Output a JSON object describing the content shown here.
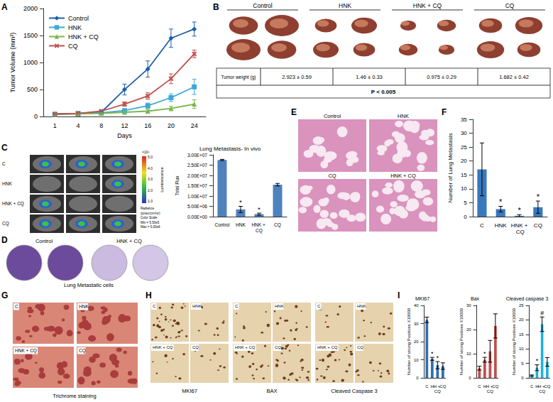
{
  "chart_data": [
    {
      "type": "line",
      "y_label": "Tumor Volume (mm³)",
      "x_label": "Days",
      "categories": [
        1,
        4,
        8,
        12,
        16,
        20,
        24
      ],
      "ylim": [
        0,
        2000
      ],
      "yticks": [
        0,
        500,
        1000,
        1500,
        2000
      ],
      "grid": false,
      "legend": "top-left",
      "series": [
        {
          "name": "Control",
          "color": "#1f5fa8",
          "marker": "diamond",
          "values": [
            50,
            60,
            80,
            500,
            880,
            1450,
            1620
          ],
          "errors": [
            10,
            15,
            20,
            100,
            150,
            170,
            130
          ]
        },
        {
          "name": "HNK",
          "color": "#3fa9d6",
          "marker": "square",
          "values": [
            40,
            55,
            70,
            110,
            200,
            350,
            550
          ],
          "errors": [
            10,
            10,
            15,
            30,
            50,
            70,
            140
          ]
        },
        {
          "name": "HNK + CQ",
          "color": "#7ab648",
          "marker": "triangle",
          "values": [
            40,
            50,
            60,
            80,
            100,
            150,
            230
          ],
          "errors": [
            10,
            10,
            10,
            20,
            30,
            40,
            80
          ]
        },
        {
          "name": "CQ",
          "color": "#c0504d",
          "marker": "x",
          "values": [
            45,
            60,
            100,
            230,
            380,
            700,
            1160
          ],
          "errors": [
            10,
            10,
            20,
            40,
            60,
            90,
            70
          ]
        }
      ]
    },
    {
      "type": "bar",
      "title": "Lung Metastasis- In vivo",
      "y_label": "Total Flux",
      "categories": [
        "Control",
        "HNK",
        "HNK + CQ",
        "CQ"
      ],
      "values": [
        27500000,
        3500000,
        1200000,
        15500000
      ],
      "errors": [
        300000,
        1500000,
        500000,
        600000
      ],
      "significance": [
        null,
        "*",
        "*",
        null
      ],
      "color": "#4f81bd",
      "ylim": [
        0,
        30000000
      ],
      "yticks": [
        {
          "value": 0,
          "label": "0.00E+00"
        },
        {
          "value": 5000000,
          "label": "5.00E+06"
        },
        {
          "value": 10000000,
          "label": "1.00E+07"
        },
        {
          "value": 15000000,
          "label": "1.50E+07"
        },
        {
          "value": 20000000,
          "label": "2.00E+07"
        },
        {
          "value": 25000000,
          "label": "2.50E+07"
        },
        {
          "value": 30000000,
          "label": "3.00E+07"
        }
      ],
      "grid": false
    },
    {
      "type": "bar",
      "y_label": "Number of Lung Metastasis",
      "categories": [
        "C",
        "HNK",
        "HNK + CQ",
        "CQ"
      ],
      "values": [
        17,
        2.7,
        0.3,
        3.4
      ],
      "errors": [
        9.5,
        1,
        0.4,
        2.2
      ],
      "significance": [
        null,
        "*",
        "*",
        "*"
      ],
      "color": "#3a78bd",
      "ylim": [
        0,
        35
      ],
      "yticks": [
        0,
        5,
        10,
        15,
        20,
        25,
        30,
        35
      ],
      "grid": false
    },
    {
      "type": "bar",
      "title": "MKI67",
      "y_label": "Number of strong Positives X10000",
      "categories": [
        "C",
        "H",
        "H + CQ",
        "CQ"
      ],
      "values": [
        32,
        10.5,
        7,
        6.5
      ],
      "errors": [
        1.5,
        0.8,
        2,
        1.8
      ],
      "significance": [
        null,
        "*",
        "*",
        null
      ],
      "color": "#2e6fb5",
      "ylim": [
        0,
        40
      ],
      "yticks": [
        0,
        10,
        20,
        30,
        40
      ],
      "grid": false
    },
    {
      "type": "bar",
      "title": "Bax",
      "y_label": "Number of strong Positives X10000",
      "categories": [
        "C",
        "H",
        "H + CQ",
        "CQ"
      ],
      "values": [
        4,
        7.5,
        11,
        21.5
      ],
      "errors": [
        0.8,
        1,
        4.5,
        5
      ],
      "significance": [
        null,
        "*",
        null,
        null
      ],
      "color": "#c0504d",
      "ylim": [
        0,
        30
      ],
      "yticks": [
        0,
        10,
        20,
        30
      ],
      "grid": false
    },
    {
      "type": "bar",
      "title": "Cleaved caspase 3",
      "y_label": "Number of strong Positives X10000",
      "categories": [
        "C",
        "H",
        "H + CQ",
        "CQ"
      ],
      "values": [
        0.8,
        3.5,
        18.5,
        5.5
      ],
      "errors": [
        0.2,
        1,
        2.5,
        1.5
      ],
      "significance": [
        null,
        "*",
        "#",
        null
      ],
      "color": "#1fb0e0",
      "ylim": [
        0,
        25
      ],
      "yticks": [
        0,
        5,
        10,
        15,
        20,
        25
      ],
      "grid": false
    }
  ],
  "figure": {
    "panel_letters": [
      "A",
      "B",
      "C",
      "D",
      "E",
      "F",
      "G",
      "H",
      "I"
    ],
    "B": {
      "groups": [
        "Control",
        "HNK",
        "HNK + CQ",
        "CQ"
      ],
      "table": {
        "header": "Tumor weight (g)",
        "values": [
          "2.923 ± 0.59",
          "1.46 ± 0.33",
          "0.975 ± 0.29",
          "1.682 ± 0.42"
        ],
        "footer": "P < 0.005"
      }
    },
    "C_image": {
      "rows": [
        "C",
        "HNK",
        "HNK + CQ",
        "CQ"
      ],
      "scale_title": "Luminescence",
      "scale_ticks": [
        "5.0",
        "4.0",
        "3.0",
        "2.0",
        "1.0"
      ],
      "scale_unit": "×10⁶",
      "scale_notes": [
        "Radiance",
        "(p/sec/cm²/sr)",
        "Color Scale",
        "Min = 5.50e5",
        "Max = 5.00e6"
      ]
    },
    "D": {
      "labels": [
        "Control",
        "HNK + CQ"
      ],
      "caption": "Lung Metastatic cells"
    },
    "E": {
      "labels": [
        "Control",
        "HNK",
        "CQ",
        "HNK + CQ"
      ]
    },
    "G": {
      "labels": [
        "C",
        "HNK",
        "HNK + CQ",
        "CQ"
      ],
      "caption": "Trichrome staining"
    },
    "H": {
      "groups": [
        {
          "title": "MKI67",
          "labels": [
            "C",
            "HNK",
            "HNK + CQ",
            "CQ"
          ]
        },
        {
          "title": "BAX",
          "labels": [
            "C",
            "HNK",
            "HNK + CQ",
            "CQ"
          ]
        },
        {
          "title": "Cleaved Caspase 3",
          "labels": [
            "C",
            "HNK",
            "HNK + CQ",
            "CQ"
          ]
        }
      ]
    }
  }
}
